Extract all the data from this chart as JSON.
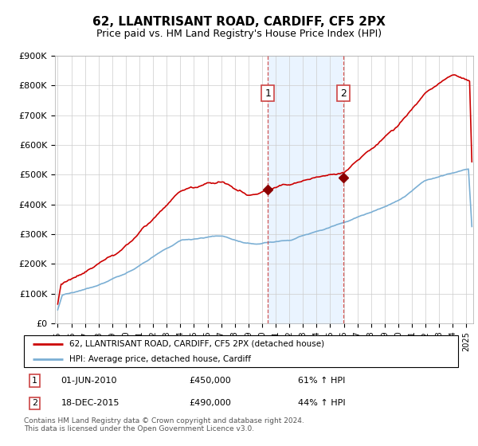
{
  "title": "62, LLANTRISANT ROAD, CARDIFF, CF5 2PX",
  "subtitle": "Price paid vs. HM Land Registry's House Price Index (HPI)",
  "legend_property": "62, LLANTRISANT ROAD, CARDIFF, CF5 2PX (detached house)",
  "legend_hpi": "HPI: Average price, detached house, Cardiff",
  "sale1_date": "01-JUN-2010",
  "sale1_price": "£450,000",
  "sale1_hpi": "61% ↑ HPI",
  "sale2_date": "18-DEC-2015",
  "sale2_price": "£490,000",
  "sale2_hpi": "44% ↑ HPI",
  "footnote": "Contains HM Land Registry data © Crown copyright and database right 2024.\nThis data is licensed under the Open Government Licence v3.0.",
  "ylim": [
    0,
    900000
  ],
  "yticks": [
    0,
    100000,
    200000,
    300000,
    400000,
    500000,
    600000,
    700000,
    800000,
    900000
  ],
  "ytick_labels": [
    "£0",
    "£100K",
    "£200K",
    "£300K",
    "£400K",
    "£500K",
    "£600K",
    "£700K",
    "£800K",
    "£900K"
  ],
  "background_color": "#ffffff",
  "plot_bg_color": "#ffffff",
  "grid_color": "#cccccc",
  "property_line_color": "#cc0000",
  "hpi_line_color": "#7bafd4",
  "shade_color": "#ddeeff",
  "sale_marker_color": "#8b0000",
  "sale1_x_year": 2010.42,
  "sale2_x_year": 2015.96,
  "sale1_price_val": 450000,
  "sale2_price_val": 490000,
  "xmin": 1994.8,
  "xmax": 2025.5
}
